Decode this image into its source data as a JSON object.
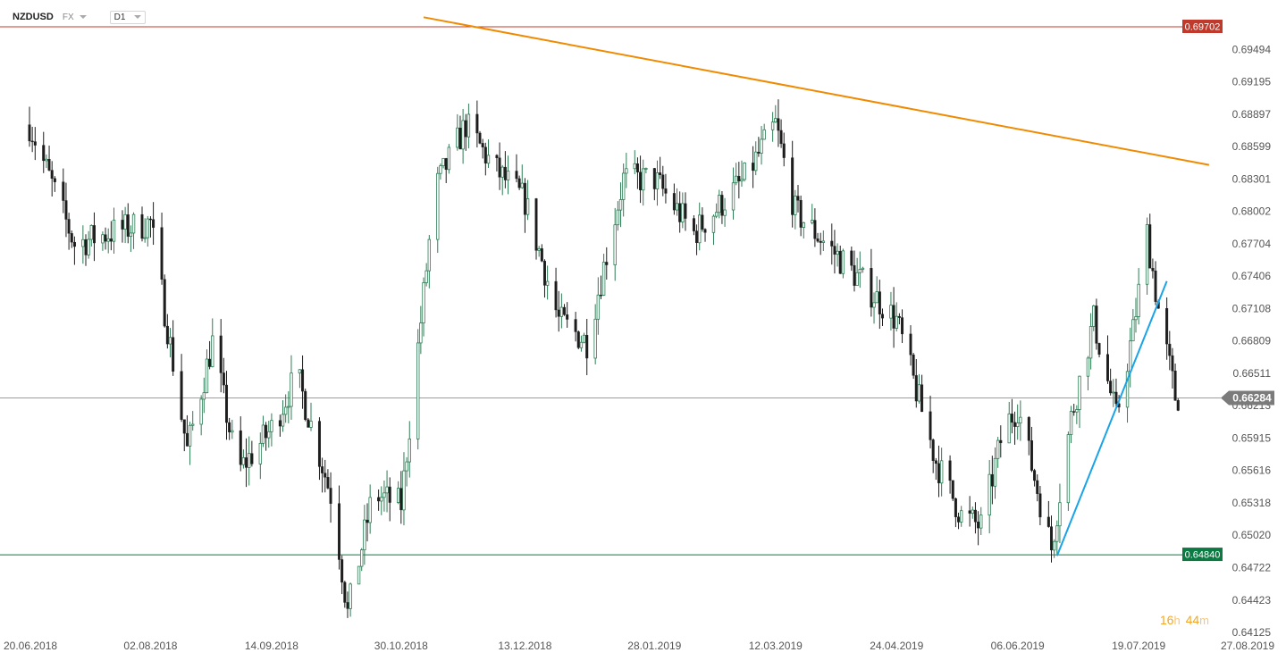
{
  "header": {
    "symbol": "NZDUSD",
    "market": "FX",
    "timeframe": "D1"
  },
  "timer": {
    "hours": "16",
    "hours_unit": "h",
    "minutes": "44",
    "minutes_unit": "m"
  },
  "chart_data": {
    "type": "candlestick",
    "instrument": "NZDUSD",
    "timeframe": "D1",
    "x_range": [
      "20.06.2018",
      "27.08.2019"
    ],
    "y_range": [
      0.64125,
      0.69702
    ],
    "y_ticks": [
      "0.69494",
      "0.69195",
      "0.68897",
      "0.68599",
      "0.68301",
      "0.68002",
      "0.67704",
      "0.67406",
      "0.67108",
      "0.66809",
      "0.66511",
      "0.66213",
      "0.65915",
      "0.65616",
      "0.65318",
      "0.65020",
      "0.64722",
      "0.64423",
      "0.64125"
    ],
    "x_ticks": [
      "20.06.2018",
      "02.08.2018",
      "14.09.2018",
      "30.10.2018",
      "13.12.2018",
      "28.01.2019",
      "12.03.2019",
      "24.04.2019",
      "06.06.2019",
      "19.07.2019",
      "27.08.2019"
    ],
    "horizontal_levels": [
      {
        "label": "0.69702",
        "value": 0.69702,
        "color": "#c0392b"
      },
      {
        "label": "0.64840",
        "value": 0.6484,
        "color": "#0b7a43"
      }
    ],
    "current_price": {
      "label": "0.66284",
      "value": 0.66284,
      "color": "#7b7b7b"
    },
    "trendlines": [
      {
        "color": "#f08a00",
        "points": [
          [
            "07.11.2018",
            0.6979
          ],
          [
            "13.08.2019",
            0.6843
          ]
        ]
      },
      {
        "color": "#1aa3e8",
        "points": [
          [
            "20.06.2019",
            0.6483
          ],
          [
            "29.07.2019",
            0.6736
          ]
        ]
      }
    ],
    "price_path": [
      [
        "20.06.2018",
        0.688
      ],
      [
        "06.07.2018",
        0.677
      ],
      [
        "18.07.2018",
        0.678
      ],
      [
        "02.08.2018",
        0.679
      ],
      [
        "15.08.2018",
        0.658
      ],
      [
        "24.08.2018",
        0.668
      ],
      [
        "02.09.2018",
        0.656
      ],
      [
        "14.09.2018",
        0.66
      ],
      [
        "23.09.2018",
        0.665
      ],
      [
        "06.10.2018",
        0.653
      ],
      [
        "11.10.2018",
        0.643
      ],
      [
        "20.10.2018",
        0.654
      ],
      [
        "30.10.2018",
        0.653
      ],
      [
        "11.11.2018",
        0.682
      ],
      [
        "22.11.2018",
        0.688
      ],
      [
        "02.12.2018",
        0.684
      ],
      [
        "13.12.2018",
        0.681
      ],
      [
        "25.12.2018",
        0.67
      ],
      [
        "04.01.2019",
        0.668
      ],
      [
        "17.01.2019",
        0.683
      ],
      [
        "28.01.2019",
        0.683
      ],
      [
        "11.02.2019",
        0.678
      ],
      [
        "01.03.2019",
        0.683
      ],
      [
        "12.03.2019",
        0.688
      ],
      [
        "19.03.2019",
        0.68
      ],
      [
        "10.04.2019",
        0.674
      ],
      [
        "24.04.2019",
        0.67
      ],
      [
        "08.05.2019",
        0.657
      ],
      [
        "17.05.2019",
        0.652
      ],
      [
        "24.05.2019",
        0.651
      ],
      [
        "01.06.2019",
        0.66
      ],
      [
        "06.06.2019",
        0.662
      ],
      [
        "18.06.2019",
        0.649
      ],
      [
        "25.06.2019",
        0.661
      ],
      [
        "03.07.2019",
        0.67
      ],
      [
        "11.07.2019",
        0.661
      ],
      [
        "17.07.2019",
        0.669
      ],
      [
        "22.07.2019",
        0.678
      ],
      [
        "26.07.2019",
        0.671
      ],
      [
        "01.08.2019",
        0.663
      ],
      [
        "04.08.2019",
        0.66284
      ]
    ]
  }
}
